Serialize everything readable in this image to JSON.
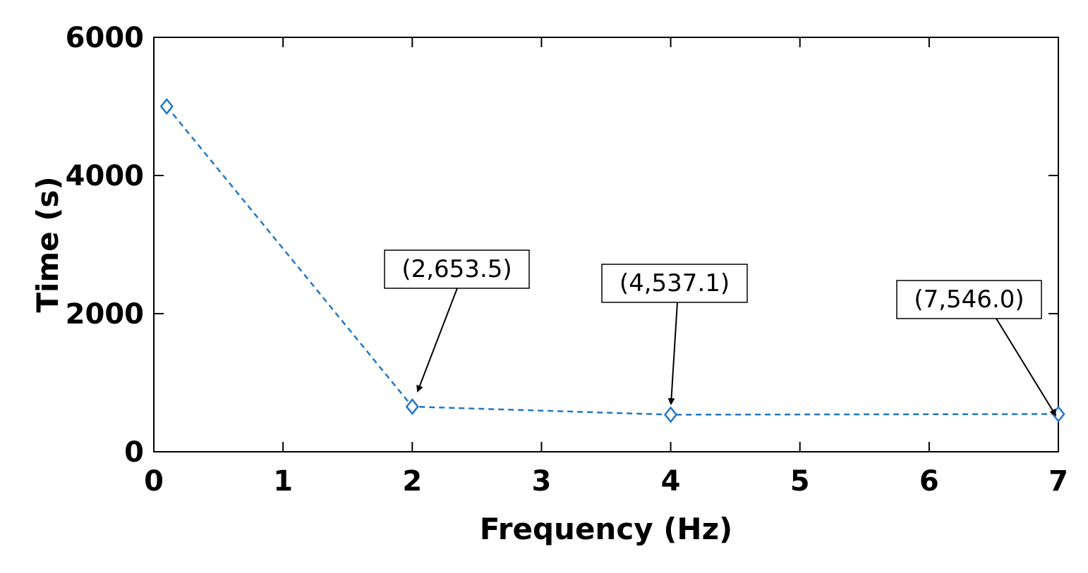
{
  "chart_data": {
    "type": "line",
    "title": "",
    "xlabel": "Frequency (Hz)",
    "ylabel": "Time (s)",
    "xlim": [
      0,
      7
    ],
    "ylim": [
      0,
      6000
    ],
    "x_ticks": [
      0,
      1,
      2,
      3,
      4,
      5,
      6,
      7
    ],
    "y_ticks": [
      0,
      2000,
      4000,
      6000
    ],
    "grid": false,
    "series": [
      {
        "x": [
          0.1,
          2,
          4,
          7
        ],
        "y": [
          5000,
          653.5,
          537.1,
          546.0
        ],
        "color": "#1f77c4",
        "line_style": "dashed",
        "marker": "diamond"
      }
    ],
    "annotations": [
      {
        "text": "(2,653.5)",
        "x": 2,
        "y": 653.5
      },
      {
        "text": "(4,537.1)",
        "x": 4,
        "y": 537.1
      },
      {
        "text": "(7,546.0)",
        "x": 7,
        "y": 546.0
      }
    ]
  }
}
